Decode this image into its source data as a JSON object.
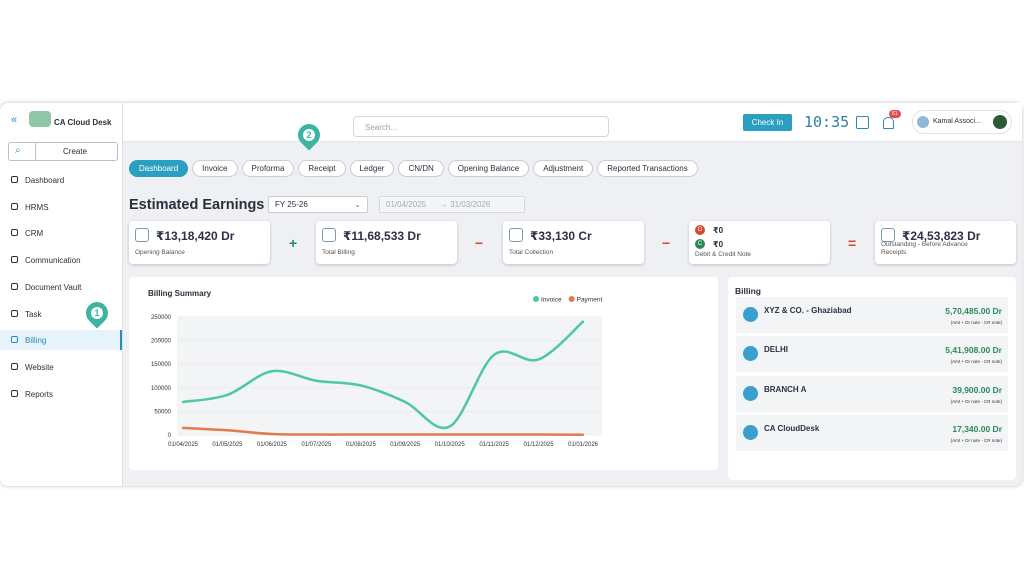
{
  "app": {
    "name": "CA Cloud Desk",
    "create": "Create"
  },
  "menu": [
    "Dashboard",
    "HRMS",
    "CRM",
    "Communication",
    "Document Vault",
    "Task",
    "Billing",
    "Website",
    "Reports"
  ],
  "menu_active": 6,
  "header": {
    "search_placeholder": "Search...",
    "check_in": "Check In",
    "time": "10:35",
    "notifications": "61",
    "user": "Kamal Associ..."
  },
  "tabs": [
    "Dashboard",
    "Invoice",
    "Proforma",
    "Receipt",
    "Ledger",
    "CN/DN",
    "Opening Balance",
    "Adjustment",
    "Reported Transactions"
  ],
  "tab_active": 0,
  "earnings": {
    "title": "Estimated Earnings",
    "fy": "FY 25-26",
    "from": "01/04/2025",
    "to": "31/03/2026",
    "cards": [
      {
        "amount": "₹13,18,420 Dr",
        "label": "Opening Balance"
      },
      {
        "amount": "₹11,68,533 Dr",
        "label": "Total Billing"
      },
      {
        "amount": "₹33,130 Cr",
        "label": "Total Collection"
      },
      {
        "debit_icon": "D",
        "debit": "₹0",
        "credit_icon": "C",
        "credit": "₹0",
        "label": "Debit & Credit Note"
      },
      {
        "amount": "₹24,53,823 Dr",
        "label": "Outstanding - Before Advance Receipts"
      }
    ],
    "operators": [
      "+",
      "−",
      "−",
      "="
    ]
  },
  "chart_data": {
    "type": "line",
    "title": "Billing Summary",
    "categories": [
      "01/04/2025",
      "01/05/2025",
      "01/06/2025",
      "01/07/2025",
      "01/08/2025",
      "01/09/2025",
      "01/10/2025",
      "01/11/2025",
      "01/12/2025",
      "01/01/2026"
    ],
    "series": [
      {
        "name": "Invoice",
        "color": "#4cc9a0",
        "values": [
          70000,
          85000,
          135000,
          115000,
          105000,
          70000,
          18000,
          170000,
          160000,
          240000
        ]
      },
      {
        "name": "Payment",
        "color": "#e07a4f",
        "values": [
          15000,
          10000,
          2000,
          1000,
          1000,
          1000,
          1000,
          1000,
          1000,
          500
        ]
      }
    ],
    "ylim": [
      0,
      250000
    ],
    "yticks": [
      0,
      50000,
      100000,
      150000,
      200000,
      250000
    ],
    "grid": true,
    "legend": "top-right"
  },
  "billing": {
    "title": "Billing",
    "items": [
      {
        "name": "XYZ & CO. - Ghaziabad",
        "amount": "5,70,485.00 Dr",
        "note": "(Amt + Dr note - CR note)"
      },
      {
        "name": "DELHI",
        "amount": "5,41,908.00 Dr",
        "note": "(Amt + Dr note - CR note)"
      },
      {
        "name": "BRANCH A",
        "amount": "39,900.00 Dr",
        "note": "(Amt + Dr note - CR note)"
      },
      {
        "name": "CA CloudDesk",
        "amount": "17,340.00 Dr",
        "note": "(Amt + Dr note - CR note)"
      }
    ]
  },
  "pins": [
    "1",
    "2"
  ]
}
